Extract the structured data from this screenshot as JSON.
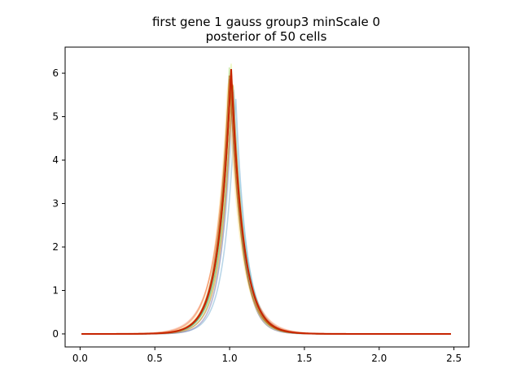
{
  "chart_data": {
    "type": "line",
    "title": "first gene 1 gauss group3 minScale 0",
    "subtitle": "posterior of 50 cells",
    "xlabel": "",
    "ylabel": "",
    "xlim": [
      -0.1,
      2.6
    ],
    "ylim": [
      -0.3,
      6.6
    ],
    "xticks": [
      0.0,
      0.5,
      1.0,
      1.5,
      2.0,
      2.5
    ],
    "xtick_labels": [
      "0.0",
      "0.5",
      "1.0",
      "1.5",
      "2.0",
      "2.5"
    ],
    "yticks": [
      0,
      1,
      2,
      3,
      4,
      5,
      6
    ],
    "ytick_labels": [
      "0",
      "1",
      "2",
      "3",
      "4",
      "5",
      "6"
    ],
    "grid": false,
    "legend": "none",
    "curve_x_range": [
      0.01,
      2.48
    ],
    "series": [
      {
        "color": "#f4a582",
        "opacity": 0.5,
        "peak_x": 1.0,
        "peak_y": 5.3,
        "width": 0.095
      },
      {
        "color": "#fdae61",
        "opacity": 0.5,
        "peak_x": 1.01,
        "peak_y": 5.6,
        "width": 0.085
      },
      {
        "color": "#a6d96a",
        "opacity": 0.5,
        "peak_x": 1.0,
        "peak_y": 6.3,
        "width": 0.075
      },
      {
        "color": "#d9ef8b",
        "opacity": 0.5,
        "peak_x": 1.01,
        "peak_y": 6.25,
        "width": 0.07
      },
      {
        "color": "#66bd63",
        "opacity": 0.5,
        "peak_x": 1.02,
        "peak_y": 5.9,
        "width": 0.08
      },
      {
        "color": "#abd9e9",
        "opacity": 0.5,
        "peak_x": 1.03,
        "peak_y": 5.7,
        "width": 0.078
      },
      {
        "color": "#74add1",
        "opacity": 0.5,
        "peak_x": 1.04,
        "peak_y": 5.5,
        "width": 0.072
      },
      {
        "color": "#8073ac",
        "opacity": 0.5,
        "peak_x": 1.02,
        "peak_y": 5.8,
        "width": 0.068
      },
      {
        "color": "#fee08b",
        "opacity": 0.5,
        "peak_x": 0.99,
        "peak_y": 5.9,
        "width": 0.082
      },
      {
        "color": "#f46d43",
        "opacity": 0.5,
        "peak_x": 1.0,
        "peak_y": 6.0,
        "width": 0.088
      },
      {
        "color": "#1a9850",
        "opacity": 0.4,
        "peak_x": 1.01,
        "peak_y": 6.1,
        "width": 0.076
      },
      {
        "color": "#e08214",
        "opacity": 0.5,
        "peak_x": 1.02,
        "peak_y": 5.95,
        "width": 0.074
      },
      {
        "color": "#d73027",
        "opacity": 0.6,
        "peak_x": 1.01,
        "peak_y": 6.05,
        "width": 0.08
      },
      {
        "color": "#b35806",
        "opacity": 0.6,
        "peak_x": 1.0,
        "peak_y": 6.1,
        "width": 0.078
      },
      {
        "color": "#cc3300",
        "opacity": 0.7,
        "peak_x": 1.01,
        "peak_y": 6.1,
        "width": 0.079
      },
      {
        "color": "#c62400",
        "opacity": 1.0,
        "peak_x": 1.01,
        "peak_y": 6.12,
        "width": 0.08
      }
    ]
  }
}
